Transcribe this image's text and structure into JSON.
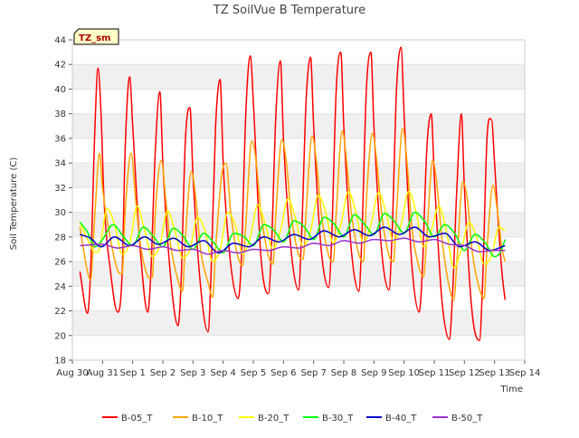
{
  "chart_data": {
    "type": "line",
    "title": "TZ SoilVue B Temperature",
    "xlabel": "Time",
    "ylabel": "Soil Temperature (C)",
    "site_badge": "TZ_sm",
    "ylim": [
      18,
      44
    ],
    "yticks": [
      18,
      20,
      22,
      24,
      26,
      28,
      30,
      32,
      34,
      36,
      38,
      40,
      42,
      44
    ],
    "xlim": [
      0,
      15
    ],
    "xtick_labels": [
      "Aug 30",
      "Aug 31",
      "Sep 1",
      "Sep 2",
      "Sep 3",
      "Sep 4",
      "Sep 5",
      "Sep 6",
      "Sep 7",
      "Sep 8",
      "Sep 9",
      "Sep 10",
      "Sep 11",
      "Sep 12",
      "Sep 13",
      "Sep 14"
    ],
    "x_unit": "days since Aug 30",
    "legend_position": "bottom",
    "background_bands": true,
    "series": [
      {
        "name": "B-05_T",
        "color": "#ff0000",
        "x": [
          0.25,
          0.5,
          0.6,
          0.75,
          0.85,
          0.95,
          1.05,
          1.25,
          1.5,
          1.65,
          1.75,
          1.9,
          2.0,
          2.25,
          2.5,
          2.6,
          2.75,
          2.9,
          3.0,
          3.25,
          3.5,
          3.6,
          3.75,
          3.9,
          4.0,
          4.25,
          4.5,
          4.6,
          4.75,
          4.9,
          5.0,
          5.25,
          5.5,
          5.6,
          5.75,
          5.9,
          6.0,
          6.25,
          6.5,
          6.6,
          6.75,
          6.9,
          7.0,
          7.25,
          7.5,
          7.6,
          7.75,
          7.9,
          8.0,
          8.25,
          8.5,
          8.6,
          8.75,
          8.9,
          9.0,
          9.25,
          9.5,
          9.6,
          9.75,
          9.9,
          10.0,
          10.25,
          10.5,
          10.6,
          10.75,
          10.9,
          11.0,
          11.25,
          11.5,
          11.6,
          11.75,
          11.9,
          12.0,
          12.25,
          12.5,
          12.6,
          12.75,
          12.9,
          13.0,
          13.25,
          13.5,
          13.6,
          13.75,
          13.9,
          14.0,
          14.1,
          14.25,
          14.35
        ],
        "values": [
          25.2,
          21.8,
          25,
          37,
          41.7,
          38,
          31,
          25.5,
          21.9,
          25,
          35,
          41,
          37,
          27,
          21.9,
          25,
          35,
          39.8,
          34,
          25,
          20.8,
          24,
          36,
          38.5,
          33,
          24,
          20.3,
          25,
          37,
          40.8,
          34,
          25.8,
          23,
          26,
          38,
          42.7,
          39,
          26.5,
          23.4,
          27,
          38,
          42.3,
          36,
          27,
          23.7,
          28,
          39,
          42.6,
          37,
          27,
          23.9,
          28,
          40,
          43,
          37,
          27,
          23.6,
          28,
          40,
          43,
          37,
          27,
          23.7,
          28,
          40,
          43.4,
          38,
          26,
          21.9,
          25,
          35,
          38,
          33,
          23,
          19.7,
          23,
          32,
          38,
          32,
          22,
          19.6,
          24,
          36,
          37.5,
          34,
          30,
          25,
          22.9
        ]
      },
      {
        "name": "B-10_T",
        "color": "#ffa500",
        "x": [
          0.25,
          0.5,
          0.6,
          0.75,
          0.9,
          1.0,
          1.25,
          1.5,
          1.65,
          1.75,
          1.95,
          2.1,
          2.25,
          2.5,
          2.65,
          2.75,
          2.95,
          3.1,
          3.25,
          3.5,
          3.65,
          3.75,
          3.95,
          4.1,
          4.25,
          4.5,
          4.65,
          4.75,
          4.95,
          5.1,
          5.25,
          5.5,
          5.65,
          5.75,
          5.95,
          6.1,
          6.25,
          6.5,
          6.65,
          6.75,
          6.95,
          7.1,
          7.25,
          7.5,
          7.65,
          7.75,
          7.95,
          8.1,
          8.25,
          8.5,
          8.65,
          8.75,
          8.95,
          9.1,
          9.25,
          9.5,
          9.65,
          9.75,
          9.95,
          10.1,
          10.25,
          10.5,
          10.65,
          10.75,
          10.95,
          11.1,
          11.25,
          11.5,
          11.65,
          11.75,
          11.95,
          12.1,
          12.25,
          12.5,
          12.65,
          12.75,
          12.95,
          13.1,
          13.25,
          13.5,
          13.65,
          13.75,
          13.95,
          14.1,
          14.25,
          14.35
        ],
        "values": [
          28.8,
          25.2,
          24.5,
          30,
          34.8,
          32,
          28,
          25.3,
          25,
          30,
          34.8,
          31,
          27.5,
          24.8,
          24.7,
          30,
          34.2,
          31,
          27.5,
          24.5,
          23.6,
          28,
          33.3,
          31,
          27,
          24.3,
          23.1,
          27,
          33,
          34,
          30,
          26.3,
          25.7,
          29,
          35.8,
          34,
          30,
          26.5,
          25.8,
          30,
          35.9,
          34,
          30,
          26.6,
          26.2,
          30,
          36.2,
          34,
          30,
          26.5,
          26,
          30,
          36.6,
          34,
          30,
          26.6,
          26,
          31,
          36.4,
          34,
          30,
          26.5,
          26,
          30,
          36.8,
          34,
          29,
          25.5,
          24.8,
          28,
          34.2,
          32,
          28,
          23.9,
          22.9,
          26,
          32.5,
          31,
          27,
          23.8,
          23,
          27,
          32.2,
          30,
          27,
          26
        ]
      },
      {
        "name": "B-20_T",
        "color": "#ffff00",
        "x": [
          0.25,
          0.5,
          0.75,
          0.9,
          1.15,
          1.4,
          1.65,
          1.9,
          2.15,
          2.4,
          2.65,
          2.9,
          3.15,
          3.4,
          3.65,
          3.9,
          4.15,
          4.4,
          4.65,
          4.9,
          5.15,
          5.4,
          5.65,
          5.9,
          6.15,
          6.4,
          6.65,
          6.9,
          7.15,
          7.4,
          7.65,
          7.9,
          8.15,
          8.4,
          8.65,
          8.9,
          9.15,
          9.4,
          9.65,
          9.9,
          10.15,
          10.4,
          10.65,
          10.9,
          11.15,
          11.4,
          11.65,
          11.9,
          12.15,
          12.4,
          12.65,
          12.9,
          13.15,
          13.4,
          13.65,
          13.9,
          14.15,
          14.35
        ],
        "values": [
          29.2,
          27.8,
          26.8,
          27,
          30.3,
          29,
          26.6,
          27.5,
          30.5,
          28.5,
          26.4,
          27.3,
          30.1,
          28.5,
          26.3,
          27,
          29.6,
          28.5,
          26,
          27,
          30,
          29,
          26.6,
          28,
          30.6,
          29,
          27,
          28.5,
          31.1,
          29.5,
          27.2,
          28.5,
          31.4,
          30,
          27.5,
          29,
          31.7,
          30,
          27.5,
          29,
          31.6,
          30,
          27.6,
          29,
          31.7,
          30,
          27.2,
          28.5,
          30.5,
          28.5,
          25.5,
          27,
          29.2,
          28,
          25.8,
          26.5,
          28.8,
          28.5
        ]
      },
      {
        "name": "B-30_T",
        "color": "#00ff00",
        "x": [
          0.25,
          0.5,
          0.75,
          1.0,
          1.35,
          1.7,
          2.0,
          2.35,
          2.7,
          3.0,
          3.35,
          3.7,
          4.0,
          4.35,
          4.7,
          5.0,
          5.35,
          5.7,
          6.0,
          6.35,
          6.7,
          7.0,
          7.35,
          7.7,
          8.0,
          8.35,
          8.7,
          9.0,
          9.35,
          9.7,
          10.0,
          10.35,
          10.7,
          11.0,
          11.35,
          11.7,
          12.0,
          12.35,
          12.7,
          13.0,
          13.35,
          13.7,
          14.0,
          14.2,
          14.35
        ],
        "values": [
          29.2,
          28.4,
          27.2,
          27.8,
          29,
          28,
          27.3,
          28.8,
          28,
          27.2,
          28.7,
          28,
          27,
          28.3,
          27.5,
          26.7,
          28.3,
          28,
          27.3,
          29,
          28.5,
          27.6,
          29.3,
          28.8,
          27.8,
          29.6,
          29,
          28,
          29.8,
          29,
          28.2,
          29.9,
          29.2,
          28.3,
          30,
          29.2,
          28,
          29,
          28.2,
          26.9,
          28.2,
          27.5,
          26.4,
          26.8,
          27.8
        ]
      },
      {
        "name": "B-40_T",
        "color": "#0000cd",
        "x": [
          0.25,
          0.6,
          0.95,
          1.4,
          1.9,
          2.4,
          2.85,
          3.35,
          3.85,
          4.35,
          4.85,
          5.35,
          5.85,
          6.35,
          6.85,
          7.35,
          7.85,
          8.35,
          8.85,
          9.35,
          9.85,
          10.35,
          10.85,
          11.35,
          11.85,
          12.35,
          12.85,
          13.35,
          13.85,
          14.35
        ],
        "values": [
          28.2,
          27.9,
          27.2,
          28.0,
          27.3,
          28.0,
          27.4,
          27.9,
          27.2,
          27.7,
          26.7,
          27.5,
          27.2,
          28.0,
          27.6,
          28.2,
          27.8,
          28.5,
          28.0,
          28.6,
          28.1,
          28.8,
          28.2,
          28.8,
          28.0,
          28.3,
          27.2,
          27.6,
          26.9,
          27.3
        ]
      },
      {
        "name": "B-50_T",
        "color": "#9932cc",
        "x": [
          0.25,
          1.0,
          1.5,
          2.0,
          2.5,
          3.0,
          3.5,
          4.0,
          4.5,
          5.0,
          5.5,
          6.0,
          6.5,
          7.0,
          7.5,
          8.0,
          8.5,
          9.0,
          9.5,
          10.0,
          10.5,
          11.0,
          11.5,
          12.0,
          12.5,
          13.0,
          13.5,
          14.0,
          14.35
        ],
        "values": [
          27.3,
          27.4,
          27.1,
          27.3,
          27.0,
          27.2,
          26.9,
          27.0,
          26.6,
          26.9,
          26.7,
          27.0,
          26.9,
          27.2,
          27.1,
          27.5,
          27.3,
          27.7,
          27.5,
          27.8,
          27.7,
          27.9,
          27.6,
          27.8,
          27.4,
          27.3,
          26.8,
          26.9,
          26.9
        ]
      }
    ]
  }
}
